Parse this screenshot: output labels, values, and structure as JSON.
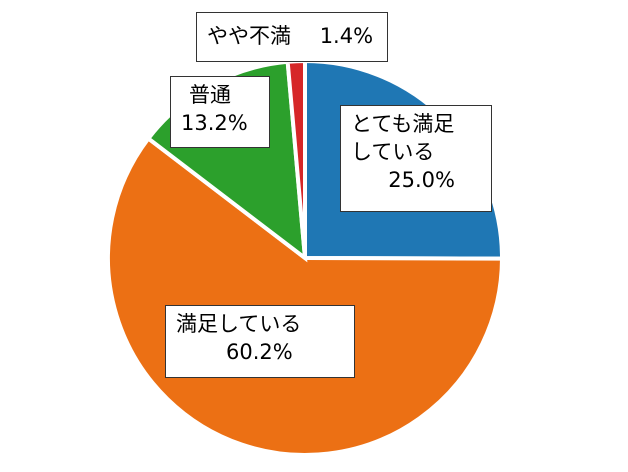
{
  "chart_data": {
    "type": "pie",
    "categories": [
      "とても満足している",
      "満足している",
      "普通",
      "やや不満"
    ],
    "values": [
      25.0,
      60.2,
      13.2,
      1.4
    ],
    "value_labels": [
      "25.0%",
      "60.2%",
      "13.2%",
      "1.4%"
    ],
    "colors": [
      "#1f77b4",
      "#ec7014",
      "#2ca02c",
      "#d62728"
    ]
  }
}
